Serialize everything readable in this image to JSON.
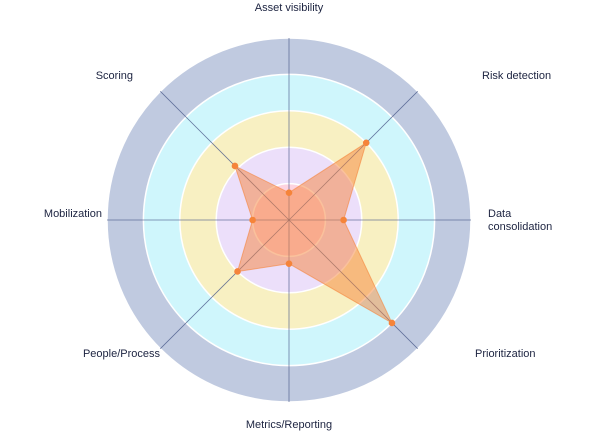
{
  "chart_data": {
    "type": "radar",
    "title": "",
    "axes": [
      "Asset visibility",
      "Risk detection",
      "Data consolidation",
      "Prioritization",
      "Metrics/Reporting",
      "People/Process",
      "Mobilization",
      "Scoring"
    ],
    "axis_label_lines": [
      [
        "Asset visibility"
      ],
      [
        "Risk detection"
      ],
      [
        "Data",
        "consolidation"
      ],
      [
        "Prioritization"
      ],
      [
        "Metrics/Reporting"
      ],
      [
        "People/Process"
      ],
      [
        "Mobilization"
      ],
      [
        "Scoring"
      ]
    ],
    "range": [
      0,
      5
    ],
    "levels": 5,
    "series": [
      {
        "values": [
          0.75,
          3,
          1.5,
          4,
          1.2,
          2,
          1,
          2.1
        ],
        "color": "#f5843a"
      }
    ],
    "ring_colors": [
      "#fdd3e0",
      "#ecdffa",
      "#f8f0c2",
      "#cff6fc",
      "#c0cae0"
    ],
    "axis_line_color": "#4a5a8a"
  }
}
